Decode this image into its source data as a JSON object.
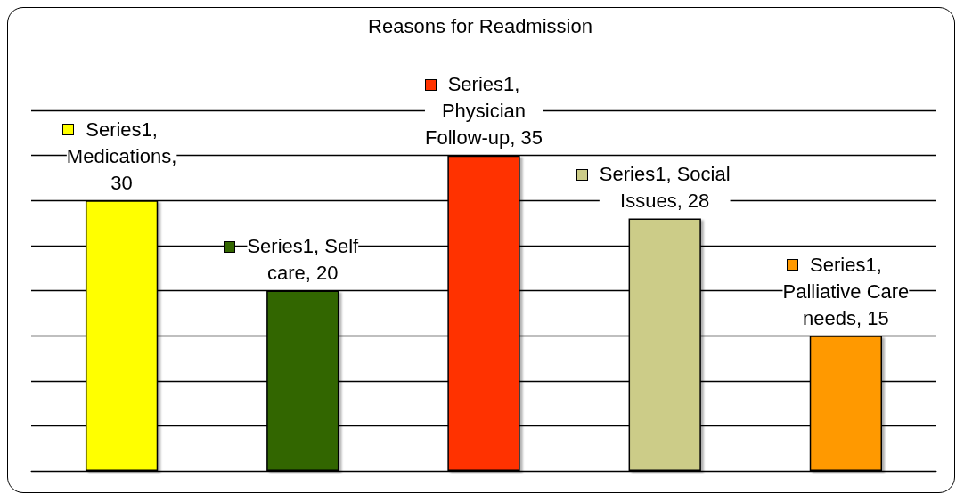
{
  "chart_data": {
    "type": "bar",
    "title": "Reasons for Readmission",
    "categories": [
      null,
      null,
      null,
      null,
      null
    ],
    "series": [
      {
        "values": [
          30,
          20,
          35,
          28,
          15
        ],
        "colors": [
          "#ffff00",
          "#336600",
          "#ff3300",
          "#cccc88",
          "#ff9900"
        ],
        "value_labels": [
          "Series1, Medications, 30",
          "Series1, Self care, 20",
          "Series1, Physician Follow-up, 35",
          "Series1, Social Issues, 28",
          "Series1, Palliative Care needs, 15"
        ]
      }
    ],
    "ylim": [
      0,
      40
    ],
    "yticks": [
      0,
      5,
      10,
      15,
      20,
      25,
      30,
      35,
      40
    ],
    "grid": "y",
    "tick_labels": false
  }
}
